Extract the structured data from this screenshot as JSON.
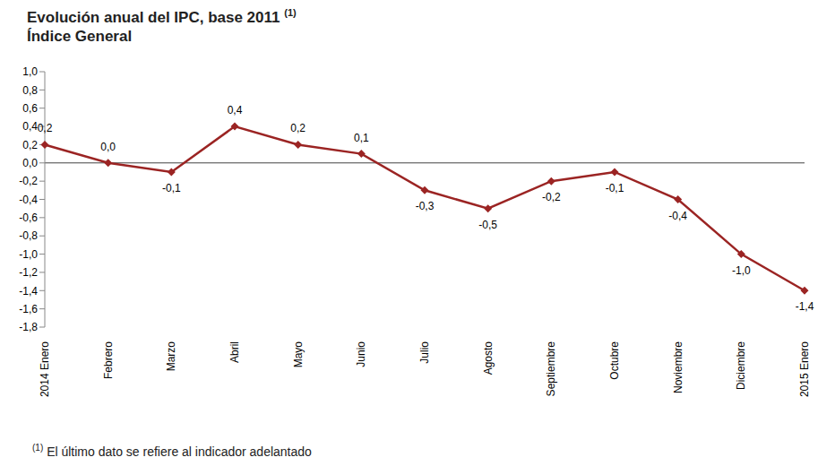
{
  "chart_data": {
    "type": "line",
    "title": "Evolución anual del IPC, base 2011",
    "title_note": "(1)",
    "subtitle": "Índice General",
    "footnote": {
      "mark": "(1)",
      "text": "El último dato se refiere al indicador adelantado"
    },
    "categories": [
      "2014 Enero",
      "Febrero",
      "Marzo",
      "Abril",
      "Mayo",
      "Junio",
      "Julio",
      "Agosto",
      "Septiembre",
      "Octubre",
      "Noviembre",
      "Diciembre",
      "2015 Enero"
    ],
    "values": [
      0.2,
      0.0,
      -0.1,
      0.4,
      0.2,
      0.1,
      -0.3,
      -0.5,
      -0.2,
      -0.1,
      -0.4,
      -1.0,
      -1.4
    ],
    "value_labels": [
      "0,2",
      "0,0",
      "-0,1",
      "0,4",
      "0,2",
      "0,1",
      "-0,3",
      "-0,5",
      "-0,2",
      "-0,1",
      "-0,4",
      "-1,0",
      "-1,4"
    ],
    "color": "#9b2423",
    "marker": "diamond",
    "data_labels": true,
    "grid": false,
    "ylim": [
      -1.8,
      1.0
    ],
    "yticks": [
      {
        "value": 1.0,
        "label": "1,0"
      },
      {
        "value": 0.8,
        "label": "0,8"
      },
      {
        "value": 0.6,
        "label": "0,6"
      },
      {
        "value": 0.4,
        "label": "0,4"
      },
      {
        "value": 0.2,
        "label": "0,2"
      },
      {
        "value": 0.0,
        "label": "0,0"
      },
      {
        "value": -0.2,
        "label": "-0,2"
      },
      {
        "value": -0.4,
        "label": "-0,4"
      },
      {
        "value": -0.6,
        "label": "-0,6"
      },
      {
        "value": -0.8,
        "label": "-0,8"
      },
      {
        "value": -1.0,
        "label": "-1,0"
      },
      {
        "value": -1.2,
        "label": "-1,2"
      },
      {
        "value": -1.4,
        "label": "-1,4"
      },
      {
        "value": -1.6,
        "label": "-1,6"
      },
      {
        "value": -1.8,
        "label": "-1,8"
      }
    ]
  }
}
